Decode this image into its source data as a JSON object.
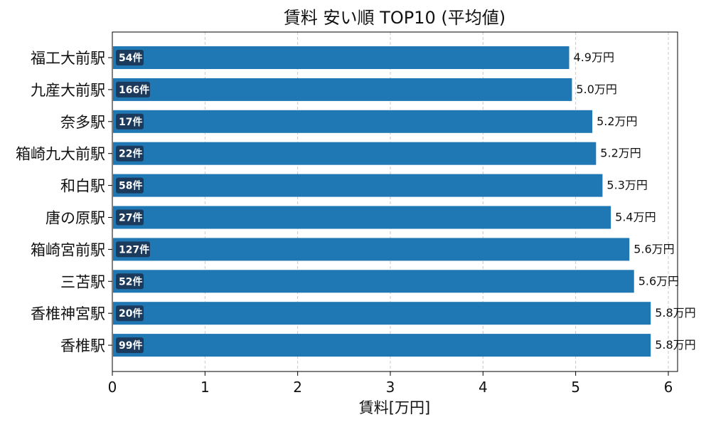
{
  "chart_data": {
    "type": "bar",
    "orientation": "horizontal",
    "title": "賃料 安い順 TOP10 (平均値)",
    "xlabel": "賃料[万円]",
    "ylabel": "",
    "xlim": [
      0,
      6.1
    ],
    "xticks": [
      0,
      1,
      2,
      3,
      4,
      5,
      6
    ],
    "grid": "x-dashed",
    "bar_color": "#1f77b4",
    "badge_color": "#1b3a5c",
    "categories": [
      "福工大前駅",
      "九産大前駅",
      "奈多駅",
      "箱崎九大前駅",
      "和白駅",
      "唐の原駅",
      "箱崎宮前駅",
      "三苫駅",
      "香椎神宮駅",
      "香椎駅"
    ],
    "values": [
      4.93,
      4.96,
      5.18,
      5.22,
      5.29,
      5.38,
      5.58,
      5.63,
      5.81,
      5.81
    ],
    "value_labels": [
      "4.9万円",
      "5.0万円",
      "5.2万円",
      "5.2万円",
      "5.3万円",
      "5.4万円",
      "5.6万円",
      "5.6万円",
      "5.8万円",
      "5.8万円"
    ],
    "count_labels": [
      "54件",
      "166件",
      "17件",
      "22件",
      "58件",
      "27件",
      "127件",
      "52件",
      "20件",
      "99件"
    ]
  }
}
